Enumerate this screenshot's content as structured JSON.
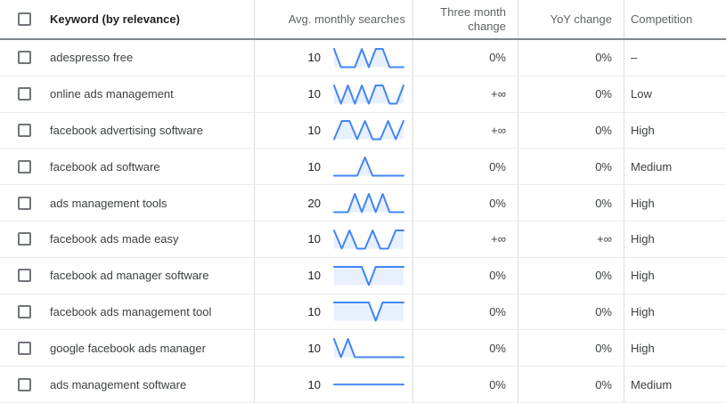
{
  "colors": {
    "sparkline_line": "#4285f4",
    "sparkline_fill": "#e8f0fe"
  },
  "columns": {
    "keyword": "Keyword (by relevance)",
    "avg_monthly_searches": "Avg. monthly searches",
    "three_month_change": "Three month change",
    "yoy_change": "YoY change",
    "competition": "Competition"
  },
  "header_checkbox_checked": false,
  "rows": [
    {
      "checked": false,
      "keyword": "adespresso free",
      "avg_monthly_searches": "10",
      "trend": [
        10,
        0,
        0,
        0,
        10,
        0,
        10,
        10,
        0,
        0,
        0
      ],
      "three_month_change": "0%",
      "yoy_change": "0%",
      "competition": "–"
    },
    {
      "checked": false,
      "keyword": "online ads management",
      "avg_monthly_searches": "10",
      "trend": [
        10,
        0,
        10,
        0,
        10,
        0,
        10,
        10,
        0,
        0,
        10
      ],
      "three_month_change": "+∞",
      "yoy_change": "0%",
      "competition": "Low"
    },
    {
      "checked": false,
      "keyword": "facebook advertising software",
      "avg_monthly_searches": "10",
      "trend": [
        0,
        10,
        10,
        0,
        10,
        0,
        0,
        10,
        0,
        10
      ],
      "three_month_change": "+∞",
      "yoy_change": "0%",
      "competition": "High"
    },
    {
      "checked": false,
      "keyword": "facebook ad software",
      "avg_monthly_searches": "10",
      "trend": [
        0,
        0,
        0,
        0,
        10,
        0,
        0,
        0,
        0,
        0
      ],
      "three_month_change": "0%",
      "yoy_change": "0%",
      "competition": "Medium"
    },
    {
      "checked": false,
      "keyword": "ads management tools",
      "avg_monthly_searches": "20",
      "trend": [
        0,
        0,
        0,
        10,
        0,
        10,
        0,
        10,
        0,
        0,
        0
      ],
      "three_month_change": "0%",
      "yoy_change": "0%",
      "competition": "High"
    },
    {
      "checked": false,
      "keyword": "facebook ads made easy",
      "avg_monthly_searches": "10",
      "trend": [
        10,
        0,
        10,
        0,
        0,
        10,
        0,
        0,
        10,
        10
      ],
      "three_month_change": "+∞",
      "yoy_change": "+∞",
      "competition": "High"
    },
    {
      "checked": false,
      "keyword": "facebook ad manager software",
      "avg_monthly_searches": "10",
      "trend": [
        10,
        10,
        10,
        10,
        10,
        0,
        10,
        10,
        10,
        10,
        10
      ],
      "three_month_change": "0%",
      "yoy_change": "0%",
      "competition": "High"
    },
    {
      "checked": false,
      "keyword": "facebook ads management tool",
      "avg_monthly_searches": "10",
      "trend": [
        10,
        10,
        10,
        10,
        10,
        10,
        0,
        10,
        10,
        10,
        10
      ],
      "three_month_change": "0%",
      "yoy_change": "0%",
      "competition": "High"
    },
    {
      "checked": false,
      "keyword": "google facebook ads manager",
      "avg_monthly_searches": "10",
      "trend": [
        10,
        0,
        10,
        0,
        0,
        0,
        0,
        0,
        0,
        0,
        0
      ],
      "three_month_change": "0%",
      "yoy_change": "0%",
      "competition": "High"
    },
    {
      "checked": false,
      "keyword": "ads management software",
      "avg_monthly_searches": "10",
      "trend": [
        5,
        5
      ],
      "three_month_change": "0%",
      "yoy_change": "0%",
      "competition": "Medium"
    }
  ]
}
